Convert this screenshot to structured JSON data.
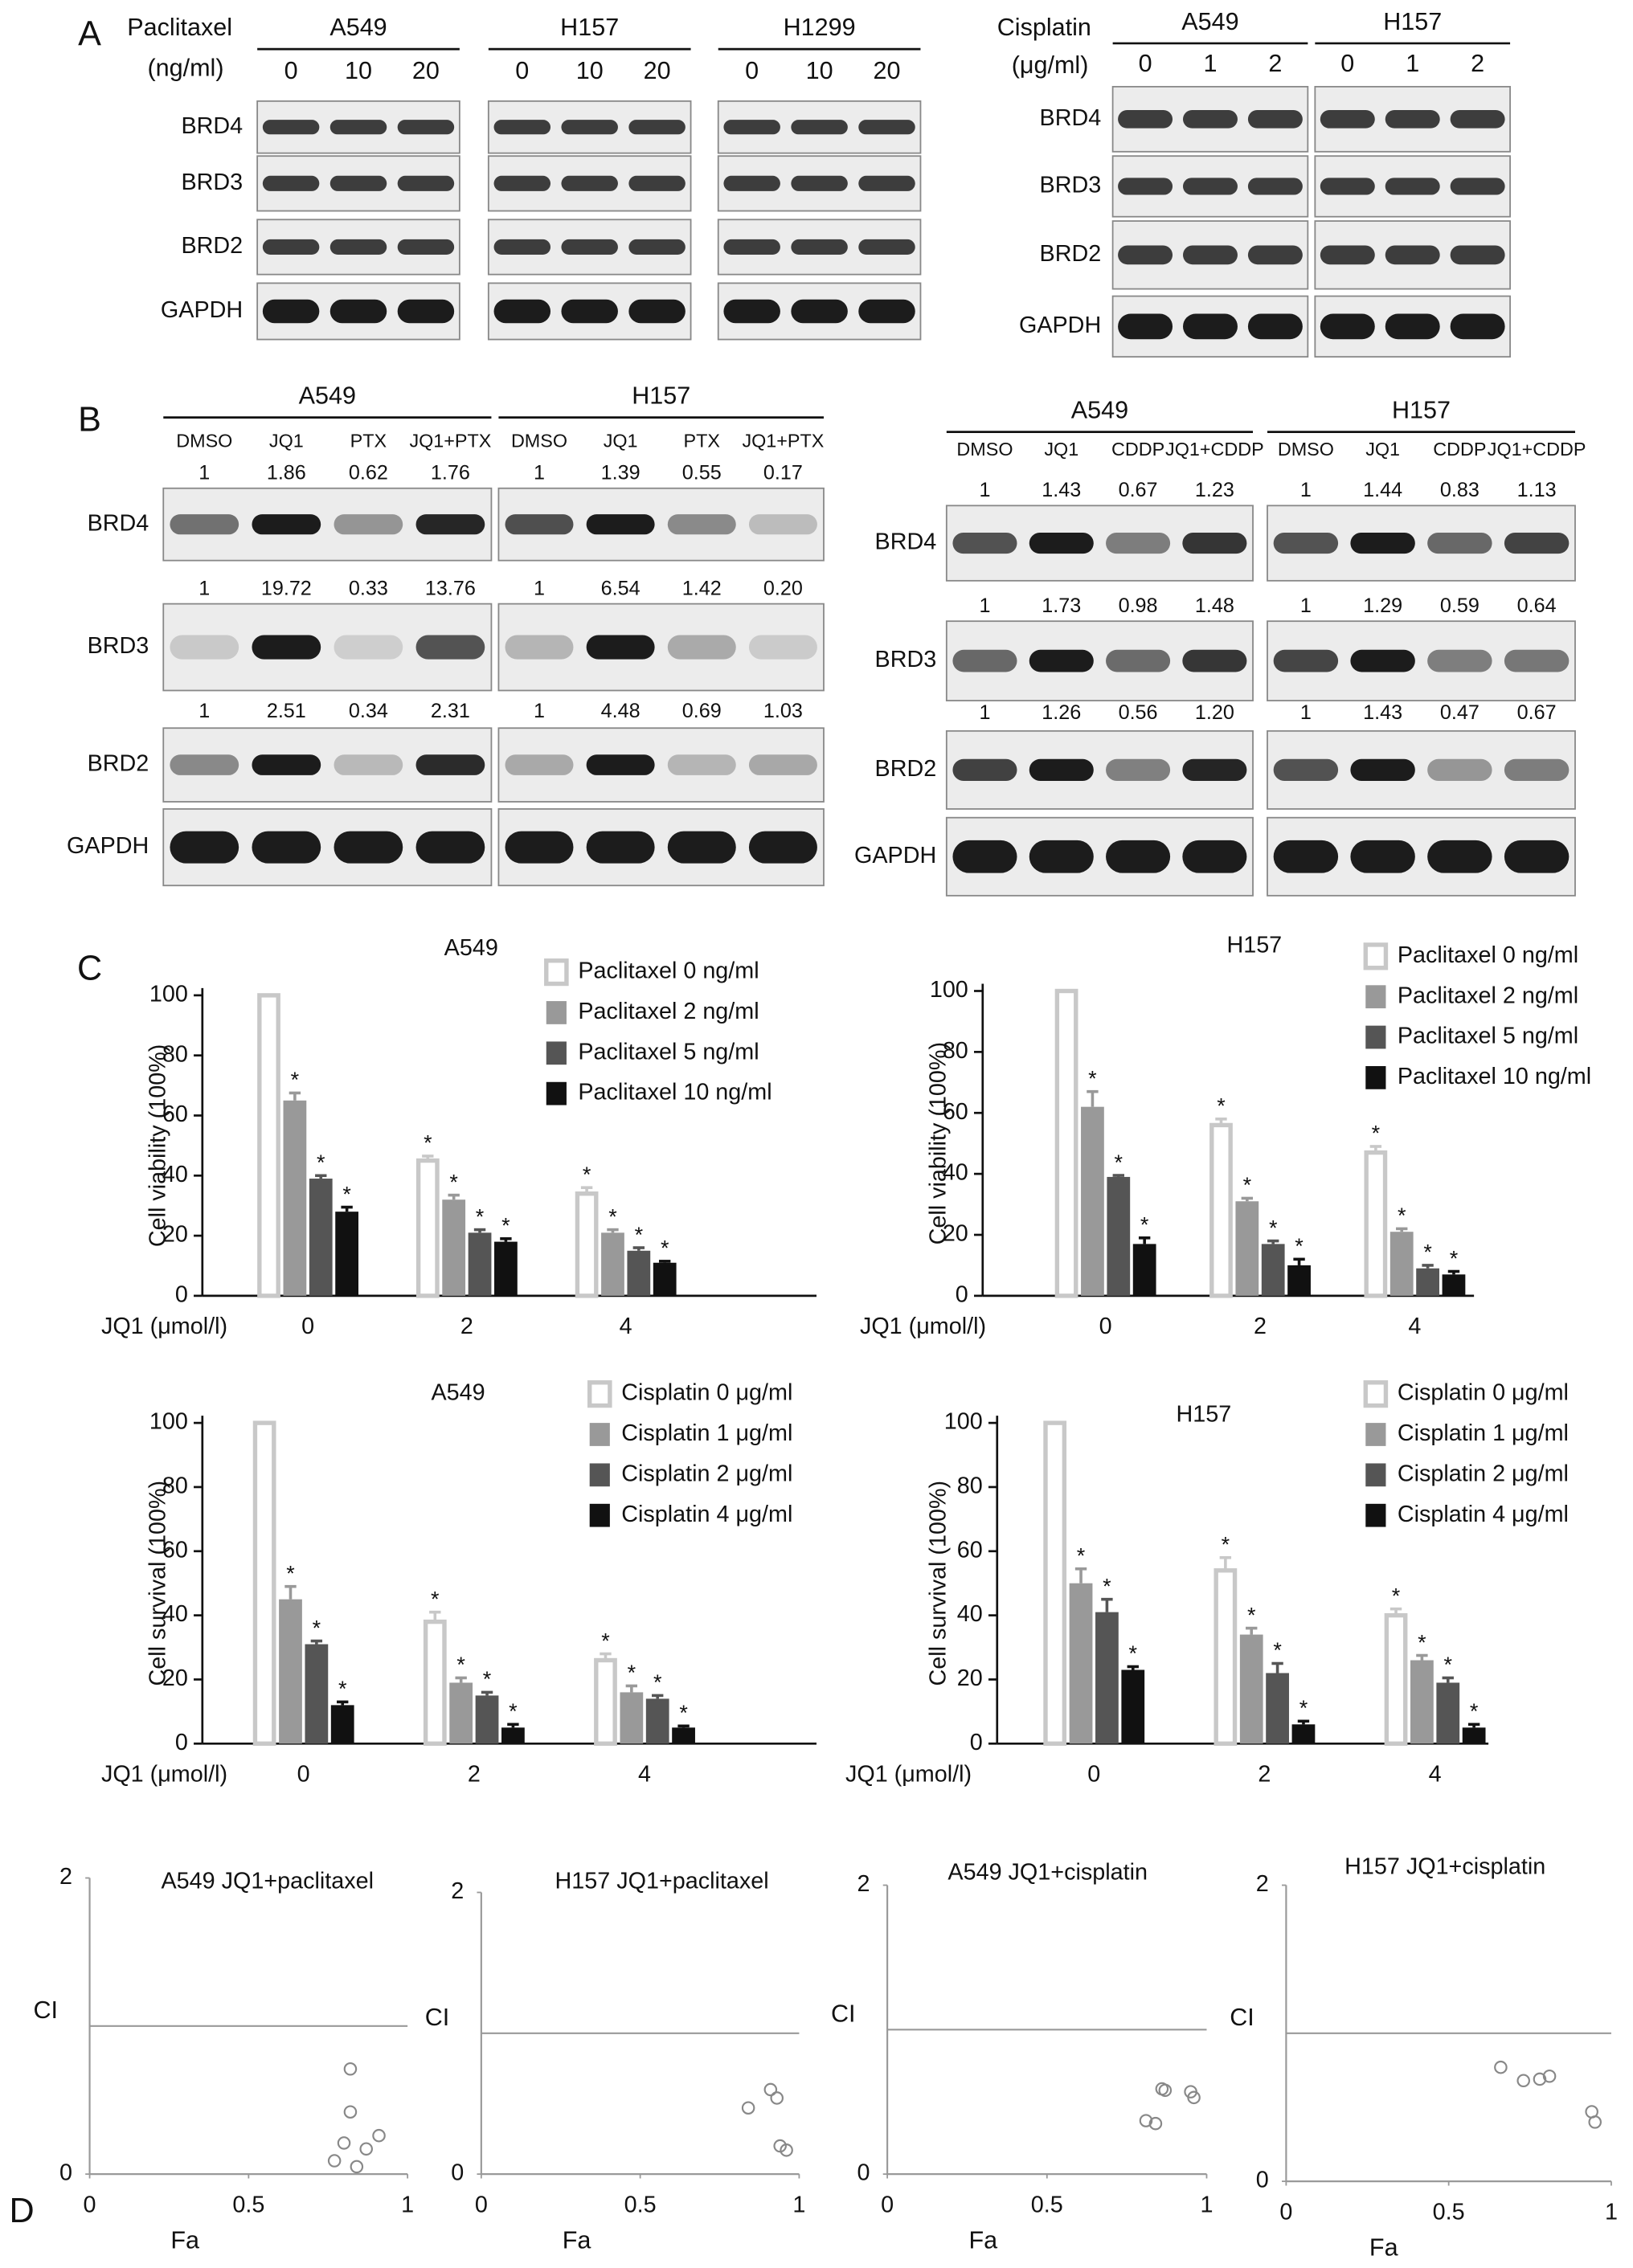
{
  "panels": [
    "A",
    "B",
    "C",
    "D"
  ],
  "panel_a": {
    "left": {
      "treatment": "Paclitaxel",
      "unit": "(ng/ml)",
      "cell_lines": [
        "A549",
        "H157",
        "H1299"
      ],
      "lanes": [
        "0",
        "10",
        "20"
      ],
      "proteins": [
        "BRD4",
        "BRD3",
        "BRD2",
        "GAPDH"
      ]
    },
    "right": {
      "treatment": "Cisplatin",
      "unit": "(μg/ml)",
      "cell_lines": [
        "A549",
        "H157"
      ],
      "lanes": [
        "0",
        "1",
        "2"
      ],
      "proteins": [
        "BRD4",
        "BRD3",
        "BRD2",
        "GAPDH"
      ]
    }
  },
  "panel_b": {
    "left": {
      "cell_lines": [
        "A549",
        "H157"
      ],
      "lanes": [
        "DMSO",
        "JQ1",
        "PTX",
        "JQ1+PTX"
      ],
      "proteins": [
        "BRD4",
        "BRD3",
        "BRD2",
        "GAPDH"
      ],
      "quantification": [
        [
          [
            "1",
            "1.86",
            "0.62",
            "1.76"
          ],
          [
            "1",
            "19.72",
            "0.33",
            "13.76"
          ],
          [
            "1",
            "2.51",
            "0.34",
            "2.31"
          ]
        ],
        [
          [
            "1",
            "1.39",
            "0.55",
            "0.17"
          ],
          [
            "1",
            "6.54",
            "1.42",
            "0.20"
          ],
          [
            "1",
            "4.48",
            "0.69",
            "1.03"
          ]
        ]
      ]
    },
    "right": {
      "cell_lines": [
        "A549",
        "H157"
      ],
      "lanes": [
        "DMSO",
        "JQ1",
        "CDDP",
        "JQ1+CDDP"
      ],
      "proteins": [
        "BRD4",
        "BRD3",
        "BRD2",
        "GAPDH"
      ],
      "quantification": [
        [
          [
            "1",
            "1.43",
            "0.67",
            "1.23"
          ],
          [
            "1",
            "1.73",
            "0.98",
            "1.48"
          ],
          [
            "1",
            "1.26",
            "0.56",
            "1.20"
          ]
        ],
        [
          [
            "1",
            "1.44",
            "0.83",
            "1.13"
          ],
          [
            "1",
            "1.29",
            "0.59",
            "0.64"
          ],
          [
            "1",
            "1.43",
            "0.47",
            "0.67"
          ]
        ]
      ]
    }
  },
  "chart_data": [
    {
      "type": "bar",
      "title": "A549",
      "y_label": "Cell viability (100%)",
      "x_label": "JQ1 (μmol/l)",
      "categories": [
        "0",
        "2",
        "4"
      ],
      "ylim": [
        0,
        100
      ],
      "yticks": [
        0,
        20,
        40,
        60,
        80,
        100
      ],
      "series": [
        {
          "name": "Paclitaxel 0 ng/ml",
          "color": "#ffffff",
          "edgecolor": "#c8c8c8",
          "values": [
            100,
            45,
            34
          ],
          "errors": [
            0,
            1.5,
            2
          ],
          "significance": [
            null,
            "*",
            "*"
          ]
        },
        {
          "name": "Paclitaxel 2 ng/ml",
          "color": "#999999",
          "values": [
            65,
            32,
            21
          ],
          "errors": [
            2.5,
            1.5,
            1
          ],
          "significance": [
            "*",
            "*",
            "*"
          ]
        },
        {
          "name": "Paclitaxel 5 ng/ml",
          "color": "#555555",
          "values": [
            39,
            21,
            15
          ],
          "errors": [
            1,
            1,
            1
          ],
          "significance": [
            "*",
            "*",
            "*"
          ]
        },
        {
          "name": "Paclitaxel 10 ng/ml",
          "color": "#111111",
          "values": [
            28,
            18,
            11
          ],
          "errors": [
            1.5,
            1,
            0.5
          ],
          "significance": [
            "*",
            "*",
            "*"
          ]
        }
      ]
    },
    {
      "type": "bar",
      "title": "H157",
      "y_label": "Cell viability (100%)",
      "x_label": "JQ1 (μmol/l)",
      "categories": [
        "0",
        "2",
        "4"
      ],
      "ylim": [
        0,
        100
      ],
      "yticks": [
        0,
        20,
        40,
        60,
        80,
        100
      ],
      "series": [
        {
          "name": "Paclitaxel 0 ng/ml",
          "color": "#ffffff",
          "edgecolor": "#c8c8c8",
          "values": [
            100,
            56,
            47
          ],
          "errors": [
            0,
            2,
            2
          ],
          "significance": [
            null,
            "*",
            "*"
          ]
        },
        {
          "name": "Paclitaxel 2 ng/ml",
          "color": "#999999",
          "values": [
            62,
            31,
            21
          ],
          "errors": [
            5,
            1,
            1
          ],
          "significance": [
            "*",
            "*",
            "*"
          ]
        },
        {
          "name": "Paclitaxel 5 ng/ml",
          "color": "#555555",
          "values": [
            39,
            17,
            9
          ],
          "errors": [
            0.5,
            1,
            1
          ],
          "significance": [
            "*",
            "*",
            "*"
          ]
        },
        {
          "name": "Paclitaxel 10 ng/ml",
          "color": "#111111",
          "values": [
            17,
            10,
            7
          ],
          "errors": [
            2,
            2,
            1
          ],
          "significance": [
            "*",
            "*",
            "*"
          ]
        }
      ]
    },
    {
      "type": "bar",
      "title": "A549",
      "y_label": "Cell survival (100%)",
      "x_label": "JQ1 (μmol/l)",
      "categories": [
        "0",
        "2",
        "4"
      ],
      "ylim": [
        0,
        100
      ],
      "yticks": [
        0,
        20,
        40,
        60,
        80,
        100
      ],
      "series": [
        {
          "name": "Cisplatin 0 μg/ml",
          "color": "#ffffff",
          "edgecolor": "#c8c8c8",
          "values": [
            100,
            38,
            26
          ],
          "errors": [
            0,
            3,
            2
          ],
          "significance": [
            null,
            "*",
            "*"
          ]
        },
        {
          "name": "Cisplatin 1 μg/ml",
          "color": "#999999",
          "values": [
            45,
            19,
            16
          ],
          "errors": [
            4,
            1.5,
            2
          ],
          "significance": [
            "*",
            "*",
            "*"
          ]
        },
        {
          "name": "Cisplatin 2 μg/ml",
          "color": "#555555",
          "values": [
            31,
            15,
            14
          ],
          "errors": [
            1,
            1,
            1
          ],
          "significance": [
            "*",
            "*",
            "*"
          ]
        },
        {
          "name": "Cisplatin 4 μg/ml",
          "color": "#111111",
          "values": [
            12,
            5,
            5
          ],
          "errors": [
            1,
            1,
            0.5
          ],
          "significance": [
            "*",
            "*",
            "*"
          ]
        }
      ]
    },
    {
      "type": "bar",
      "title": "H157",
      "y_label": "Cell survival (100%)",
      "x_label": "JQ1 (μmol/l)",
      "categories": [
        "0",
        "2",
        "4"
      ],
      "ylim": [
        0,
        100
      ],
      "yticks": [
        0,
        20,
        40,
        60,
        80,
        100
      ],
      "series": [
        {
          "name": "Cisplatin 0 μg/ml",
          "color": "#ffffff",
          "edgecolor": "#c8c8c8",
          "values": [
            100,
            54,
            40
          ],
          "errors": [
            0,
            4,
            2
          ],
          "significance": [
            null,
            "*",
            "*"
          ]
        },
        {
          "name": "Cisplatin 1 μg/ml",
          "color": "#999999",
          "values": [
            50,
            34,
            26
          ],
          "errors": [
            4.5,
            2,
            1.5
          ],
          "significance": [
            "*",
            "*",
            "*"
          ]
        },
        {
          "name": "Cisplatin 2 μg/ml",
          "color": "#555555",
          "values": [
            41,
            22,
            19
          ],
          "errors": [
            4,
            3,
            1.5
          ],
          "significance": [
            "*",
            "*",
            "*"
          ]
        },
        {
          "name": "Cisplatin 4 μg/ml",
          "color": "#111111",
          "values": [
            23,
            6,
            5
          ],
          "errors": [
            1,
            1,
            1
          ],
          "significance": [
            "*",
            "*",
            "*"
          ]
        }
      ]
    },
    {
      "type": "scatter",
      "title": "A549 JQ1+paclitaxel",
      "x_label": "Fa",
      "y_label": "CI",
      "xlim": [
        0,
        1
      ],
      "ylim": [
        0,
        2
      ],
      "xticks": [
        0,
        0.5,
        1
      ],
      "yticks": [
        0,
        2
      ],
      "reference_line": 1,
      "color": "#888888",
      "x": [
        0.82,
        0.82,
        0.8,
        0.91,
        0.87,
        0.77,
        0.84
      ],
      "values": [
        0.71,
        0.42,
        0.21,
        0.26,
        0.17,
        0.09,
        0.05
      ]
    },
    {
      "type": "scatter",
      "title": "H157 JQ1+paclitaxel",
      "x_label": "Fa",
      "y_label": "CI",
      "xlim": [
        0,
        1
      ],
      "ylim": [
        0,
        2
      ],
      "xticks": [
        0,
        0.5,
        1
      ],
      "yticks": [
        0,
        2
      ],
      "reference_line": 1,
      "color": "#888888",
      "x": [
        0.84,
        0.91,
        0.93,
        0.94,
        0.96
      ],
      "values": [
        0.47,
        0.6,
        0.54,
        0.2,
        0.17
      ]
    },
    {
      "type": "scatter",
      "title": "A549 JQ1+cisplatin",
      "x_label": "Fa",
      "y_label": "CI",
      "xlim": [
        0,
        1
      ],
      "ylim": [
        0,
        2
      ],
      "xticks": [
        0,
        0.5,
        1
      ],
      "yticks": [
        0,
        2
      ],
      "reference_line": 1,
      "color": "#888888",
      "x": [
        0.81,
        0.84,
        0.86,
        0.87,
        0.95,
        0.96
      ],
      "values": [
        0.37,
        0.35,
        0.59,
        0.58,
        0.57,
        0.53
      ]
    },
    {
      "type": "scatter",
      "title": "H157 JQ1+cisplatin",
      "x_label": "Fa",
      "y_label": "CI",
      "xlim": [
        0,
        1
      ],
      "ylim": [
        0,
        2
      ],
      "xticks": [
        0,
        0.5,
        1
      ],
      "yticks": [
        0,
        2
      ],
      "reference_line": 1,
      "color": "#888888",
      "x": [
        0.66,
        0.73,
        0.78,
        0.81,
        0.94,
        0.95
      ],
      "values": [
        0.77,
        0.68,
        0.69,
        0.71,
        0.47,
        0.4
      ]
    }
  ]
}
